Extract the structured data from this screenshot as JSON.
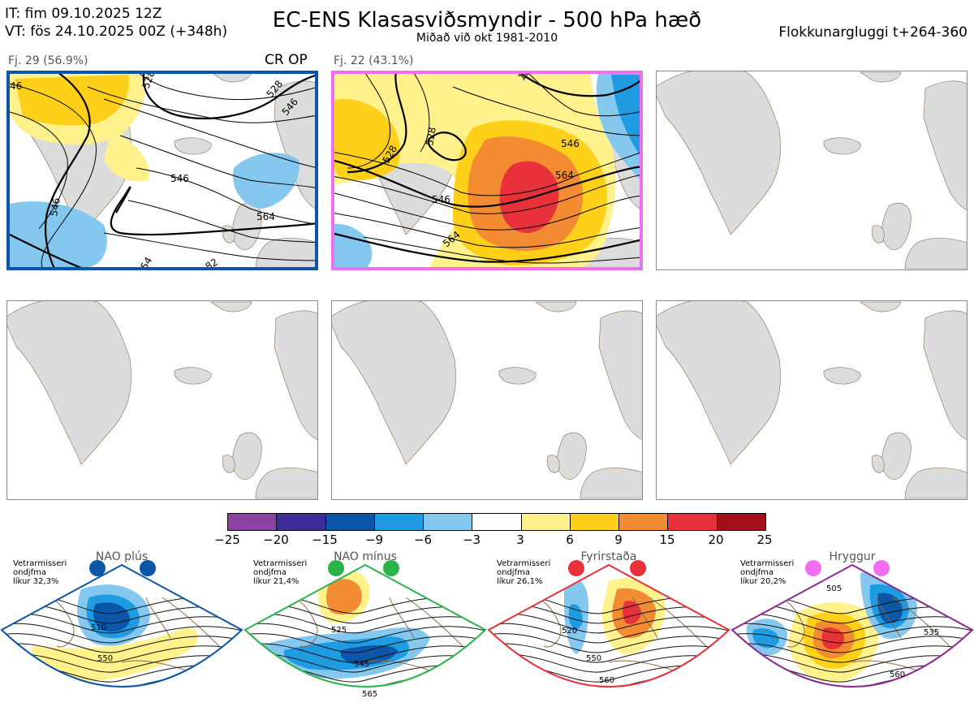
{
  "header": {
    "it_line": "IT: fim 09.10.2025 12Z",
    "vt_line": "VT: fös 24.10.2025 00Z  (+348h)",
    "title": "EC-ENS Klasasviðsmyndir - 500 hPa hæð",
    "subtitle": "Miðað við okt 1981-2010",
    "window": "Flokkunargluggi t+264-360"
  },
  "panels": [
    {
      "label": "Fj. 29 (56.9%)",
      "tag": "CR OP",
      "border_color": "#0b56a8",
      "contours": [
        "528",
        "546",
        "564",
        "546",
        "528",
        "564",
        "546",
        "46",
        "54",
        "82"
      ]
    },
    {
      "label": "Fj. 22 (43.1%)",
      "tag": "",
      "border_color": "#ef6ff0",
      "contours": [
        "528",
        "546",
        "564",
        "546",
        "564",
        "528",
        "18"
      ]
    }
  ],
  "colorbar": {
    "ticks": [
      "−25",
      "−20",
      "−15",
      "−9",
      "−6",
      "−3",
      "3",
      "6",
      "9",
      "15",
      "20",
      "25"
    ],
    "colors": [
      "#8b43a3",
      "#3f2d97",
      "#0c56a8",
      "#1f9be2",
      "#85c8ef",
      "#ffffff",
      "#fff18c",
      "#ffd01a",
      "#f38b33",
      "#e8313a",
      "#a3101b"
    ]
  },
  "regimes": [
    {
      "name": "NAO plús",
      "season": "Vetrarmisseri",
      "subtitle": "ondjfma",
      "likelihood": "líkur 32,3%",
      "dot_color": "#0b56a8",
      "frame_color": "#0b56a8",
      "contour_labels": [
        "510",
        "550"
      ]
    },
    {
      "name": "NAO mínus",
      "season": "Vetrarmisseri",
      "subtitle": "ondjfma",
      "likelihood": "líkur 21,4%",
      "dot_color": "#2cb24a",
      "frame_color": "#2cb24a",
      "contour_labels": [
        "525",
        "545",
        "565"
      ]
    },
    {
      "name": "Fyrirstaða",
      "season": "Vetrarmisseri",
      "subtitle": "ondjfma",
      "likelihood": "líkur 26,1%",
      "dot_color": "#e8313a",
      "frame_color": "#e8313a",
      "contour_labels": [
        "520",
        "550",
        "560"
      ]
    },
    {
      "name": "Hryggur",
      "season": "Vetrarmisseri",
      "subtitle": "ondjfma",
      "likelihood": "líkur 20,2%",
      "dot_color": "#ef6ff0",
      "frame_color": "#8b2a8e",
      "contour_labels": [
        "505",
        "535",
        "560"
      ]
    }
  ]
}
